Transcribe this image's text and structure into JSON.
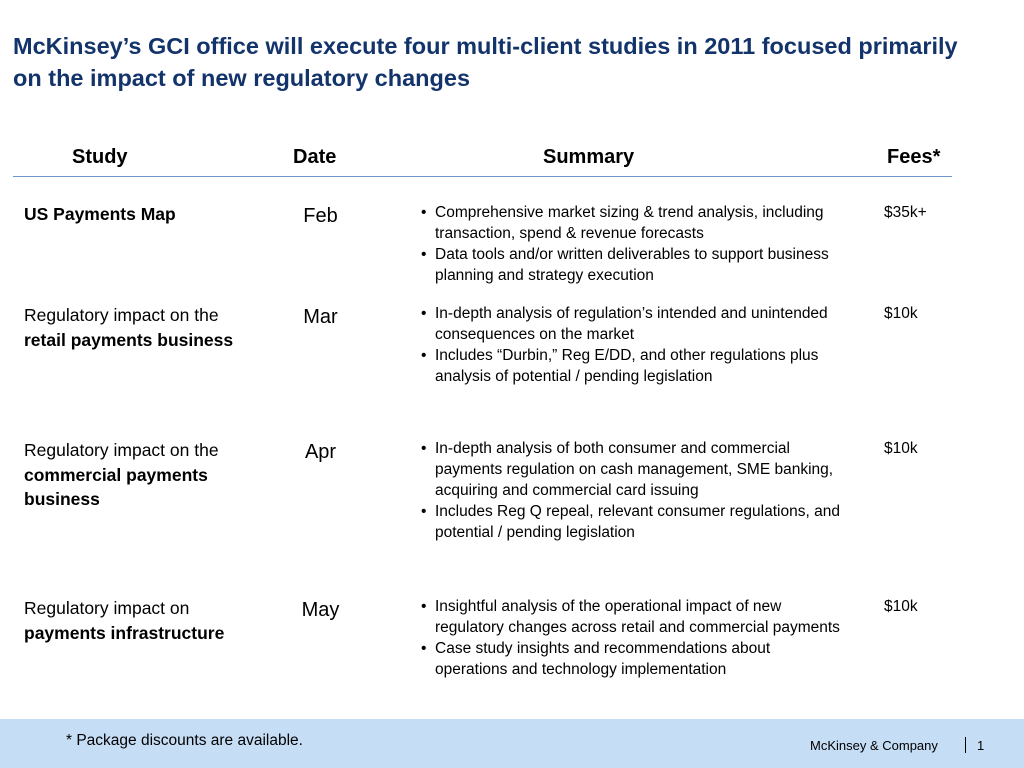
{
  "title": "McKinsey’s GCI office will execute four multi-client studies in 2011 focused primarily on the impact of new regulatory changes",
  "headers": {
    "study": "Study",
    "date": "Date",
    "summary": "Summary",
    "fees": "Fees*"
  },
  "rows": [
    {
      "study_plain": "",
      "study_bold": "US Payments Map",
      "date": "Feb",
      "bullets": [
        "Comprehensive market sizing & trend analysis, including transaction, spend & revenue forecasts",
        "Data tools and/or written deliverables to support business planning and strategy execution"
      ],
      "fee": "$35k+"
    },
    {
      "study_plain": "Regulatory impact on the ",
      "study_bold": "retail payments business",
      "date": "Mar",
      "bullets": [
        "In-depth analysis of regulation’s intended and unintended consequences on the market",
        "Includes “Durbin,” Reg E/DD, and other regulations plus analysis of potential / pending legislation"
      ],
      "fee": "$10k"
    },
    {
      "study_plain": "Regulatory impact on the ",
      "study_bold": "commercial payments business",
      "date": "Apr",
      "bullets": [
        "In-depth analysis of both consumer and commercial payments regulation on cash management, SME banking, acquiring and commercial card issuing",
        "Includes Reg Q repeal, relevant consumer regulations, and potential / pending legislation"
      ],
      "fee": "$10k"
    },
    {
      "study_plain": "Regulatory impact on ",
      "study_bold": "payments infrastructure",
      "date": "May",
      "bullets": [
        "Insightful analysis of the operational impact of new regulatory changes across retail and commercial payments",
        "Case study insights and recommendations about operations and technology implementation"
      ],
      "fee": "$10k"
    }
  ],
  "bullet_char": "•",
  "footer": {
    "footnote": "* Package discounts are available.",
    "brand": "McKinsey & Company",
    "page_number": "1"
  },
  "colors": {
    "title": "#13336b",
    "header_rule": "#6f98c8",
    "footer_band": "#c6ddf6"
  }
}
